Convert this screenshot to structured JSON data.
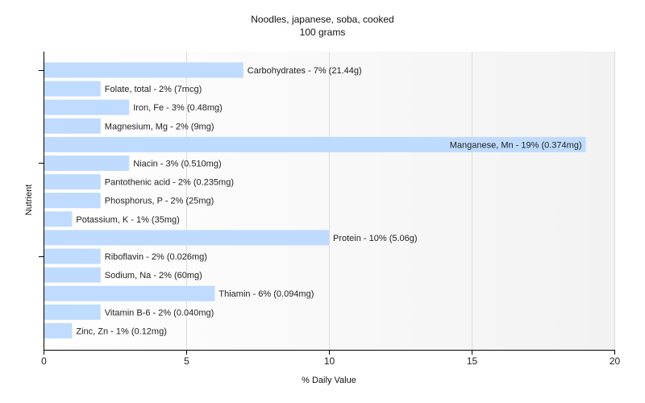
{
  "chart_data": {
    "type": "bar",
    "orientation": "horizontal",
    "title": "Noodles, japanese, soba, cooked",
    "subtitle": "100 grams",
    "xlabel": "% Daily Value",
    "ylabel": "Nutrient",
    "xlim": [
      0,
      20
    ],
    "xticks": [
      0,
      5,
      10,
      15,
      20
    ],
    "grid": true,
    "bar_color": "#bfdbff",
    "categories": [
      "Carbohydrates",
      "Folate, total",
      "Iron, Fe",
      "Magnesium, Mg",
      "Manganese, Mn",
      "Niacin",
      "Pantothenic acid",
      "Phosphorus, P",
      "Potassium, K",
      "Protein",
      "Riboflavin",
      "Sodium, Na",
      "Thiamin",
      "Vitamin B-6",
      "Zinc, Zn"
    ],
    "values": [
      7,
      2,
      3,
      2,
      19,
      3,
      2,
      2,
      1,
      10,
      2,
      2,
      6,
      2,
      1
    ],
    "labels": [
      "Carbohydrates - 7% (21.44g)",
      "Folate, total - 2% (7mcg)",
      "Iron, Fe - 3% (0.48mg)",
      "Magnesium, Mg - 2% (9mg)",
      "Manganese, Mn - 19% (0.374mg)",
      "Niacin - 3% (0.510mg)",
      "Pantothenic acid - 2% (0.235mg)",
      "Phosphorus, P - 2% (25mg)",
      "Potassium, K - 1% (35mg)",
      "Protein - 10% (5.06g)",
      "Riboflavin - 2% (0.026mg)",
      "Sodium, Na - 2% (60mg)",
      "Thiamin - 6% (0.094mg)",
      "Vitamin B-6 - 2% (0.040mg)",
      "Zinc, Zn - 1% (0.12mg)"
    ]
  }
}
